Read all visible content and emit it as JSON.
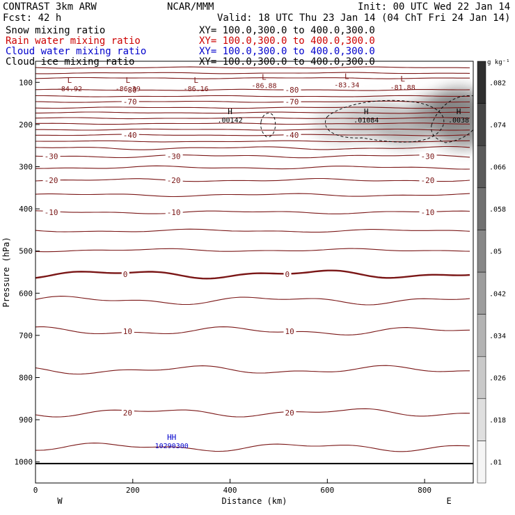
{
  "header": {
    "model": "CONTRAST  3km ARW",
    "org": "NCAR/MMM",
    "init": "Init: 00 UTC Wed 22 Jan 14",
    "fcst": "Fcst:   42 h",
    "valid": "Valid: 18 UTC Thu 23 Jan 14 (04 ChT Fri 24 Jan 14)"
  },
  "fields": [
    {
      "name": "Snow mixing ratio",
      "xy": "XY= 100.0,300.0 to 400.0,300.0",
      "color": "#000000"
    },
    {
      "name": "Rain water mixing ratio",
      "xy": "XY= 100.0,300.0 to 400.0,300.0",
      "color": "#cc0000"
    },
    {
      "name": "Cloud water mixing ratio",
      "xy": "XY= 100.0,300.0 to 400.0,300.0",
      "color": "#0000cc"
    },
    {
      "name": "Cloud ice mixing ratio",
      "xy": "XY= 100.0,300.0 to 400.0,300.0",
      "color": "#000000"
    }
  ],
  "chart_data": {
    "type": "cross-section contour",
    "xlabel": "Distance (km)",
    "ylabel": "Pressure (hPa)",
    "xlim": [
      0,
      900
    ],
    "ylim": [
      1050,
      50
    ],
    "xticks": [
      0,
      200,
      400,
      600,
      800
    ],
    "yticks": [
      100,
      200,
      300,
      400,
      500,
      600,
      700,
      800,
      900,
      1000
    ],
    "x_end_labels": {
      "left": "W",
      "right": "E"
    },
    "temperature_contours": {
      "color": "#7a1616",
      "levels": [
        {
          "p": 65,
          "label": ""
        },
        {
          "p": 78,
          "label": ""
        },
        {
          "p": 90,
          "label": ""
        },
        {
          "p": 118,
          "label": "-80"
        },
        {
          "p": 133,
          "label": ""
        },
        {
          "p": 146,
          "label": "-70"
        },
        {
          "p": 160,
          "label": ""
        },
        {
          "p": 172,
          "label": ""
        },
        {
          "p": 185,
          "label": ""
        },
        {
          "p": 198,
          "label": ""
        },
        {
          "p": 212,
          "label": ""
        },
        {
          "p": 225,
          "label": "-40"
        },
        {
          "p": 240,
          "label": ""
        },
        {
          "p": 256,
          "label": ""
        },
        {
          "p": 275,
          "label": "-30"
        },
        {
          "p": 302,
          "label": ""
        },
        {
          "p": 332,
          "label": "-20"
        },
        {
          "p": 367,
          "label": ""
        },
        {
          "p": 408,
          "label": "-10"
        },
        {
          "p": 452,
          "label": ""
        },
        {
          "p": 498,
          "label": ""
        },
        {
          "p": 555,
          "label": "0",
          "bold": true
        },
        {
          "p": 617,
          "label": ""
        },
        {
          "p": 690,
          "label": "10"
        },
        {
          "p": 782,
          "label": ""
        },
        {
          "p": 883,
          "label": "20"
        },
        {
          "p": 965,
          "label": ""
        }
      ]
    },
    "min_labels": [
      {
        "x": 70,
        "p": 111,
        "letter": "L",
        "value": "-84.92"
      },
      {
        "x": 190,
        "p": 111,
        "letter": "L",
        "value": "-86.39"
      },
      {
        "x": 330,
        "p": 111,
        "letter": "L",
        "value": "-86.16"
      },
      {
        "x": 470,
        "p": 104,
        "letter": "L",
        "value": "-86.88"
      },
      {
        "x": 640,
        "p": 102,
        "letter": "L",
        "value": "-83.34"
      },
      {
        "x": 755,
        "p": 108,
        "letter": "L",
        "value": "-81.88"
      }
    ],
    "max_labels": [
      {
        "x": 400,
        "p": 185,
        "letter": "H",
        "value": ".00142"
      },
      {
        "x": 680,
        "p": 185,
        "letter": "H",
        "value": ".01084"
      },
      {
        "x": 870,
        "p": 185,
        "letter": "H",
        "value": ".0038"
      },
      {
        "x": 280,
        "p": 958,
        "letter": "HH",
        "value": "10290300"
      }
    ],
    "ice_shading": [
      {
        "x": 630,
        "p": 200,
        "value": 0.026
      },
      {
        "x": 700,
        "p": 190,
        "value": 0.034
      },
      {
        "x": 760,
        "p": 205,
        "value": 0.042
      },
      {
        "x": 830,
        "p": 175,
        "value": 0.05
      },
      {
        "x": 870,
        "p": 160,
        "value": 0.062
      },
      {
        "x": 880,
        "p": 210,
        "value": 0.058
      }
    ],
    "colorbar": {
      "unit": "g kg⁻¹",
      "labels": [
        ".01",
        ".018",
        ".026",
        ".034",
        ".042",
        ".05",
        ".058",
        ".066",
        ".074",
        ".082"
      ]
    }
  }
}
